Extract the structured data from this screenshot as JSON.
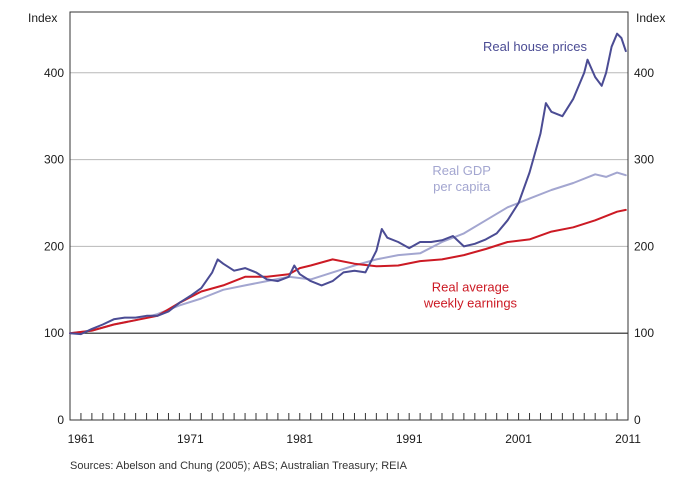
{
  "chart_data": {
    "type": "line",
    "xlim": [
      1960,
      2011
    ],
    "ylim": [
      0,
      470
    ],
    "x_ticks": [
      1961,
      1971,
      1981,
      1991,
      2001,
      2011
    ],
    "y_ticks": [
      0,
      100,
      200,
      300,
      400
    ],
    "grid": true,
    "left_ylabel": "Index",
    "right_ylabel": "Index",
    "series": [
      {
        "name": "Real house prices",
        "label_lines": [
          "Real house prices"
        ],
        "color": "#4b4c94",
        "x": [
          1960,
          1961,
          1962,
          1963,
          1964,
          1965,
          1966,
          1967,
          1968,
          1969,
          1970,
          1971,
          1972,
          1973,
          1973.5,
          1974,
          1975,
          1976,
          1977,
          1978,
          1979,
          1980,
          1980.5,
          1981,
          1982,
          1983,
          1984,
          1985,
          1986,
          1987,
          1988,
          1988.5,
          1989,
          1990,
          1991,
          1992,
          1993,
          1994,
          1995,
          1996,
          1997,
          1998,
          1999,
          2000,
          2001,
          2002,
          2003,
          2003.5,
          2004,
          2005,
          2006,
          2007,
          2007.3,
          2008,
          2008.6,
          2009,
          2009.5,
          2010,
          2010.4,
          2010.8
        ],
        "values": [
          100,
          99,
          105,
          110,
          116,
          118,
          118,
          120,
          120,
          125,
          135,
          143,
          152,
          170,
          185,
          180,
          172,
          175,
          170,
          162,
          160,
          165,
          178,
          168,
          160,
          155,
          160,
          170,
          172,
          170,
          195,
          220,
          210,
          205,
          198,
          205,
          205,
          207,
          212,
          200,
          203,
          208,
          215,
          230,
          250,
          285,
          330,
          365,
          355,
          350,
          370,
          400,
          415,
          395,
          385,
          400,
          430,
          445,
          440,
          425
        ]
      },
      {
        "name": "Real GDP per capita",
        "label_lines": [
          "Real GDP",
          "per capita"
        ],
        "color": "#a3a6d0",
        "x": [
          1960,
          1962,
          1964,
          1966,
          1968,
          1970,
          1972,
          1974,
          1976,
          1978,
          1980,
          1982,
          1984,
          1986,
          1988,
          1990,
          1992,
          1994,
          1996,
          1998,
          2000,
          2002,
          2004,
          2006,
          2008,
          2009,
          2010,
          2010.8
        ],
        "values": [
          100,
          103,
          110,
          115,
          122,
          132,
          140,
          150,
          155,
          160,
          165,
          162,
          170,
          178,
          185,
          190,
          192,
          205,
          215,
          230,
          245,
          255,
          265,
          273,
          283,
          280,
          285,
          282
        ]
      },
      {
        "name": "Real average weekly earnings",
        "label_lines": [
          "Real average",
          "weekly earnings"
        ],
        "color": "#cc1a24",
        "x": [
          1960,
          1962,
          1964,
          1966,
          1968,
          1970,
          1972,
          1974,
          1976,
          1978,
          1980,
          1981,
          1982,
          1984,
          1986,
          1988,
          1990,
          1992,
          1994,
          1996,
          1998,
          2000,
          2002,
          2004,
          2006,
          2008,
          2010,
          2010.8
        ],
        "values": [
          100,
          103,
          110,
          115,
          120,
          135,
          148,
          155,
          165,
          165,
          168,
          175,
          178,
          185,
          180,
          177,
          178,
          183,
          185,
          190,
          197,
          205,
          208,
          217,
          222,
          230,
          240,
          242
        ]
      }
    ]
  },
  "source_note": "Sources:  Abelson and Chung (2005); ABS; Australian Treasury; REIA"
}
